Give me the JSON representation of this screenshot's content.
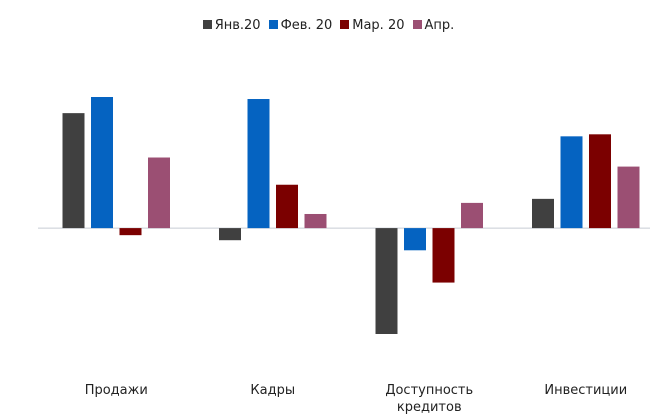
{
  "chart_data": {
    "type": "bar",
    "categories": [
      "Продажи",
      "Кадры",
      "Доступность кредитов",
      "Инвестиции"
    ],
    "series": [
      {
        "name": "Янв.20",
        "color": "#404040",
        "values": [
          114,
          -12,
          -105,
          29
        ]
      },
      {
        "name": "Фев. 20",
        "color": "#0563c1",
        "values": [
          130,
          128,
          -22,
          91
        ]
      },
      {
        "name": "Мар. 20",
        "color": "#7b0000",
        "values": [
          -7,
          43,
          -54,
          93
        ]
      },
      {
        "name": "Апр.",
        "color": "#9b4f73",
        "values": [
          70,
          14,
          25,
          61
        ]
      }
    ],
    "legend": "top"
  }
}
